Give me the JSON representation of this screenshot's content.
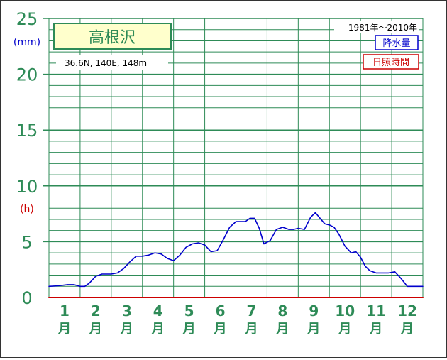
{
  "chart_data": {
    "type": "line",
    "station_name": "高根沢",
    "location": "36.6N,  140E,  148m",
    "period": "1981年～2010年",
    "legend": [
      {
        "label": "降水量",
        "color": "#0000cc"
      },
      {
        "label": "日照時間",
        "color": "#cc0000"
      }
    ],
    "y_unit_top": "(mm)",
    "y_unit_bottom": "(h)",
    "y_ticks": [
      "0",
      "5",
      "10",
      "15",
      "20",
      "25"
    ],
    "ylim": [
      0,
      25
    ],
    "months": [
      {
        "num": "1",
        "kanji": "月"
      },
      {
        "num": "2",
        "kanji": "月"
      },
      {
        "num": "3",
        "kanji": "月"
      },
      {
        "num": "4",
        "kanji": "月"
      },
      {
        "num": "5",
        "kanji": "月"
      },
      {
        "num": "6",
        "kanji": "月"
      },
      {
        "num": "7",
        "kanji": "月"
      },
      {
        "num": "8",
        "kanji": "月"
      },
      {
        "num": "9",
        "kanji": "月"
      },
      {
        "num": "10",
        "kanji": "月"
      },
      {
        "num": "11",
        "kanji": "月"
      },
      {
        "num": "12",
        "kanji": "月"
      }
    ],
    "xlim": [
      0,
      12
    ],
    "grid": true,
    "series": [
      {
        "name": "降水量",
        "color": "#0000cc",
        "x": [
          0.0,
          0.3,
          0.6,
          0.8,
          1.0,
          1.15,
          1.3,
          1.5,
          1.7,
          2.0,
          2.2,
          2.4,
          2.6,
          2.8,
          3.0,
          3.2,
          3.4,
          3.6,
          3.8,
          4.0,
          4.2,
          4.4,
          4.6,
          4.8,
          5.0,
          5.2,
          5.4,
          5.6,
          5.8,
          6.0,
          6.15,
          6.3,
          6.45,
          6.6,
          6.75,
          6.9,
          7.1,
          7.3,
          7.5,
          7.7,
          7.85,
          8.0,
          8.2,
          8.4,
          8.55,
          8.7,
          8.85,
          9.0,
          9.15,
          9.3,
          9.5,
          9.7,
          9.85,
          10.0,
          10.15,
          10.3,
          10.5,
          10.7,
          10.9,
          11.1,
          11.3,
          11.5,
          11.7,
          12.0
        ],
        "y": [
          1.0,
          1.05,
          1.15,
          1.15,
          1.0,
          1.0,
          1.3,
          1.9,
          2.1,
          2.1,
          2.2,
          2.6,
          3.2,
          3.7,
          3.7,
          3.8,
          4.0,
          3.9,
          3.5,
          3.3,
          3.8,
          4.5,
          4.8,
          4.9,
          4.7,
          4.1,
          4.2,
          5.2,
          6.3,
          6.8,
          6.8,
          6.8,
          7.1,
          7.1,
          6.2,
          4.8,
          5.1,
          6.1,
          6.3,
          6.1,
          6.1,
          6.2,
          6.1,
          7.2,
          7.6,
          7.1,
          6.6,
          6.5,
          6.3,
          5.7,
          4.6,
          4.0,
          4.1,
          3.6,
          2.8,
          2.4,
          2.2,
          2.2,
          2.2,
          2.3,
          1.7,
          1.0,
          1.0,
          1.0
        ]
      },
      {
        "name": "日照時間",
        "color": "#cc0000",
        "x": [
          0,
          12
        ],
        "y": [
          0,
          0
        ]
      }
    ]
  }
}
